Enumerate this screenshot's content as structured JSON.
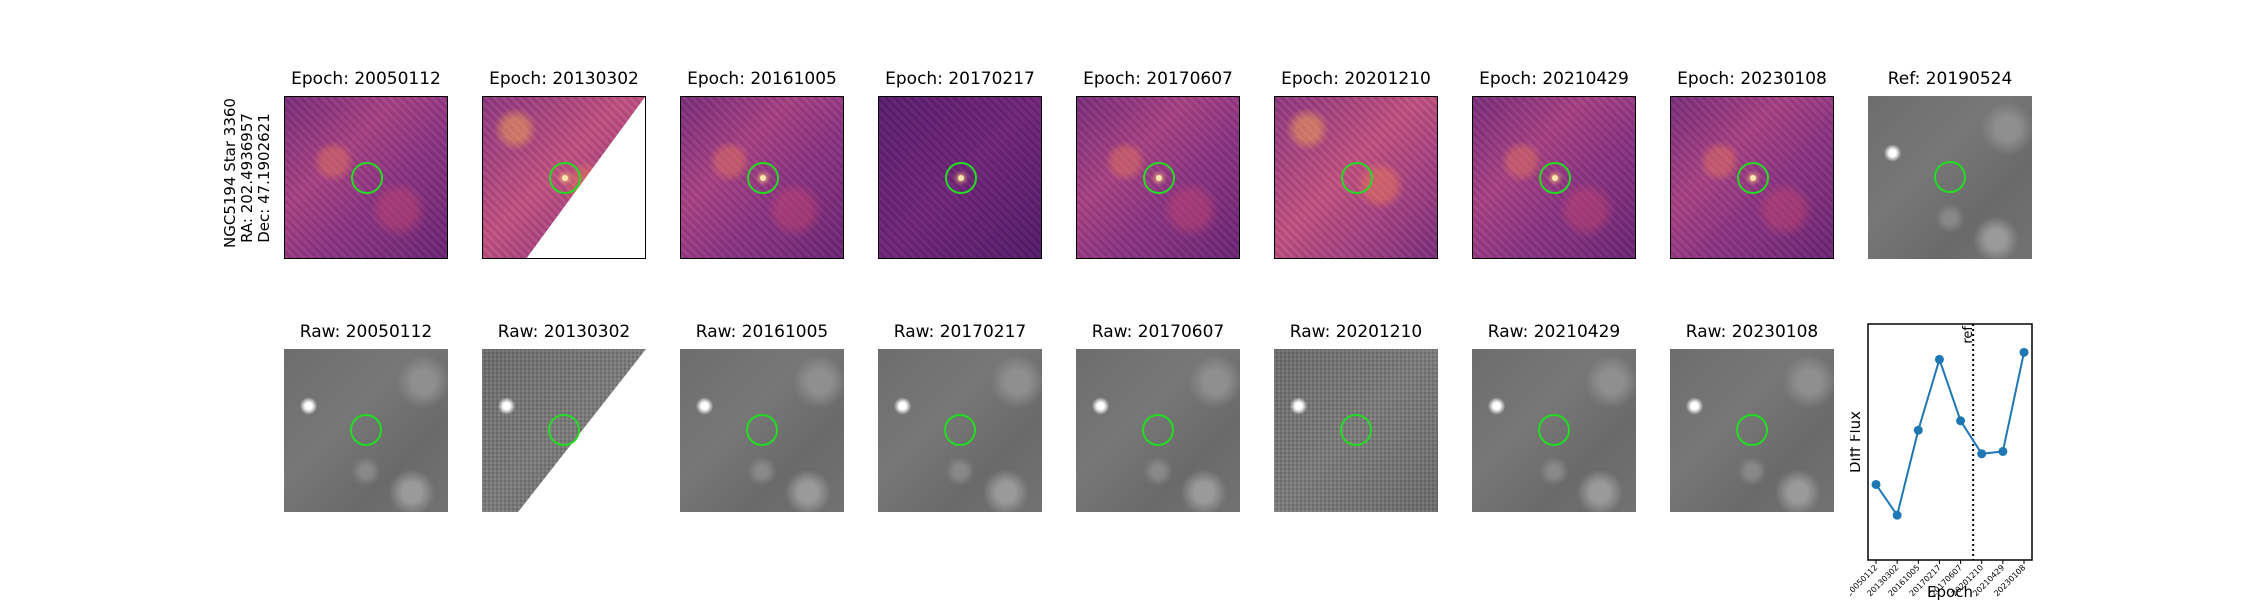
{
  "object": {
    "name": "NGC5194 Star 3360",
    "ra": "RA: 202.4936957",
    "dec": "Dec: 47.1902621"
  },
  "diff_panels": [
    {
      "title": "Epoch: 20050112"
    },
    {
      "title": "Epoch: 20130302"
    },
    {
      "title": "Epoch: 20161005"
    },
    {
      "title": "Epoch: 20170217"
    },
    {
      "title": "Epoch: 20170607"
    },
    {
      "title": "Epoch: 20201210"
    },
    {
      "title": "Epoch: 20210429"
    },
    {
      "title": "Epoch: 20230108"
    }
  ],
  "ref_panel": {
    "title": "Ref: 20190524"
  },
  "raw_panels": [
    {
      "title": "Raw: 20050112"
    },
    {
      "title": "Raw: 20130302"
    },
    {
      "title": "Raw: 20161005"
    },
    {
      "title": "Raw: 20170217"
    },
    {
      "title": "Raw: 20170607"
    },
    {
      "title": "Raw: 20201210"
    },
    {
      "title": "Raw: 20210429"
    },
    {
      "title": "Raw: 20230108"
    }
  ],
  "chart_data": {
    "type": "line",
    "categories": [
      "20050112",
      "20130302",
      "20161005",
      "20170217",
      "20170607",
      "20201210",
      "20210429",
      "20230108"
    ],
    "series": [
      {
        "values": [
          0.32,
          0.19,
          0.55,
          0.85,
          0.59,
          0.45,
          0.46,
          0.88
        ]
      }
    ],
    "xlabel": "Epoch",
    "ylabel": "Diff Flux",
    "ylim": [
      0.0,
      1.0
    ],
    "reference_line": {
      "label": "ref",
      "x": "20190524",
      "position_between": [
        "20170607",
        "20201210"
      ],
      "style": "dotted"
    },
    "marker_color": "#1f77b4",
    "line_color": "#1f77b4",
    "grid": false
  },
  "colors": {
    "circle": "#22dd22",
    "diff_cmap": "magma",
    "raw_cmap": "gray"
  }
}
